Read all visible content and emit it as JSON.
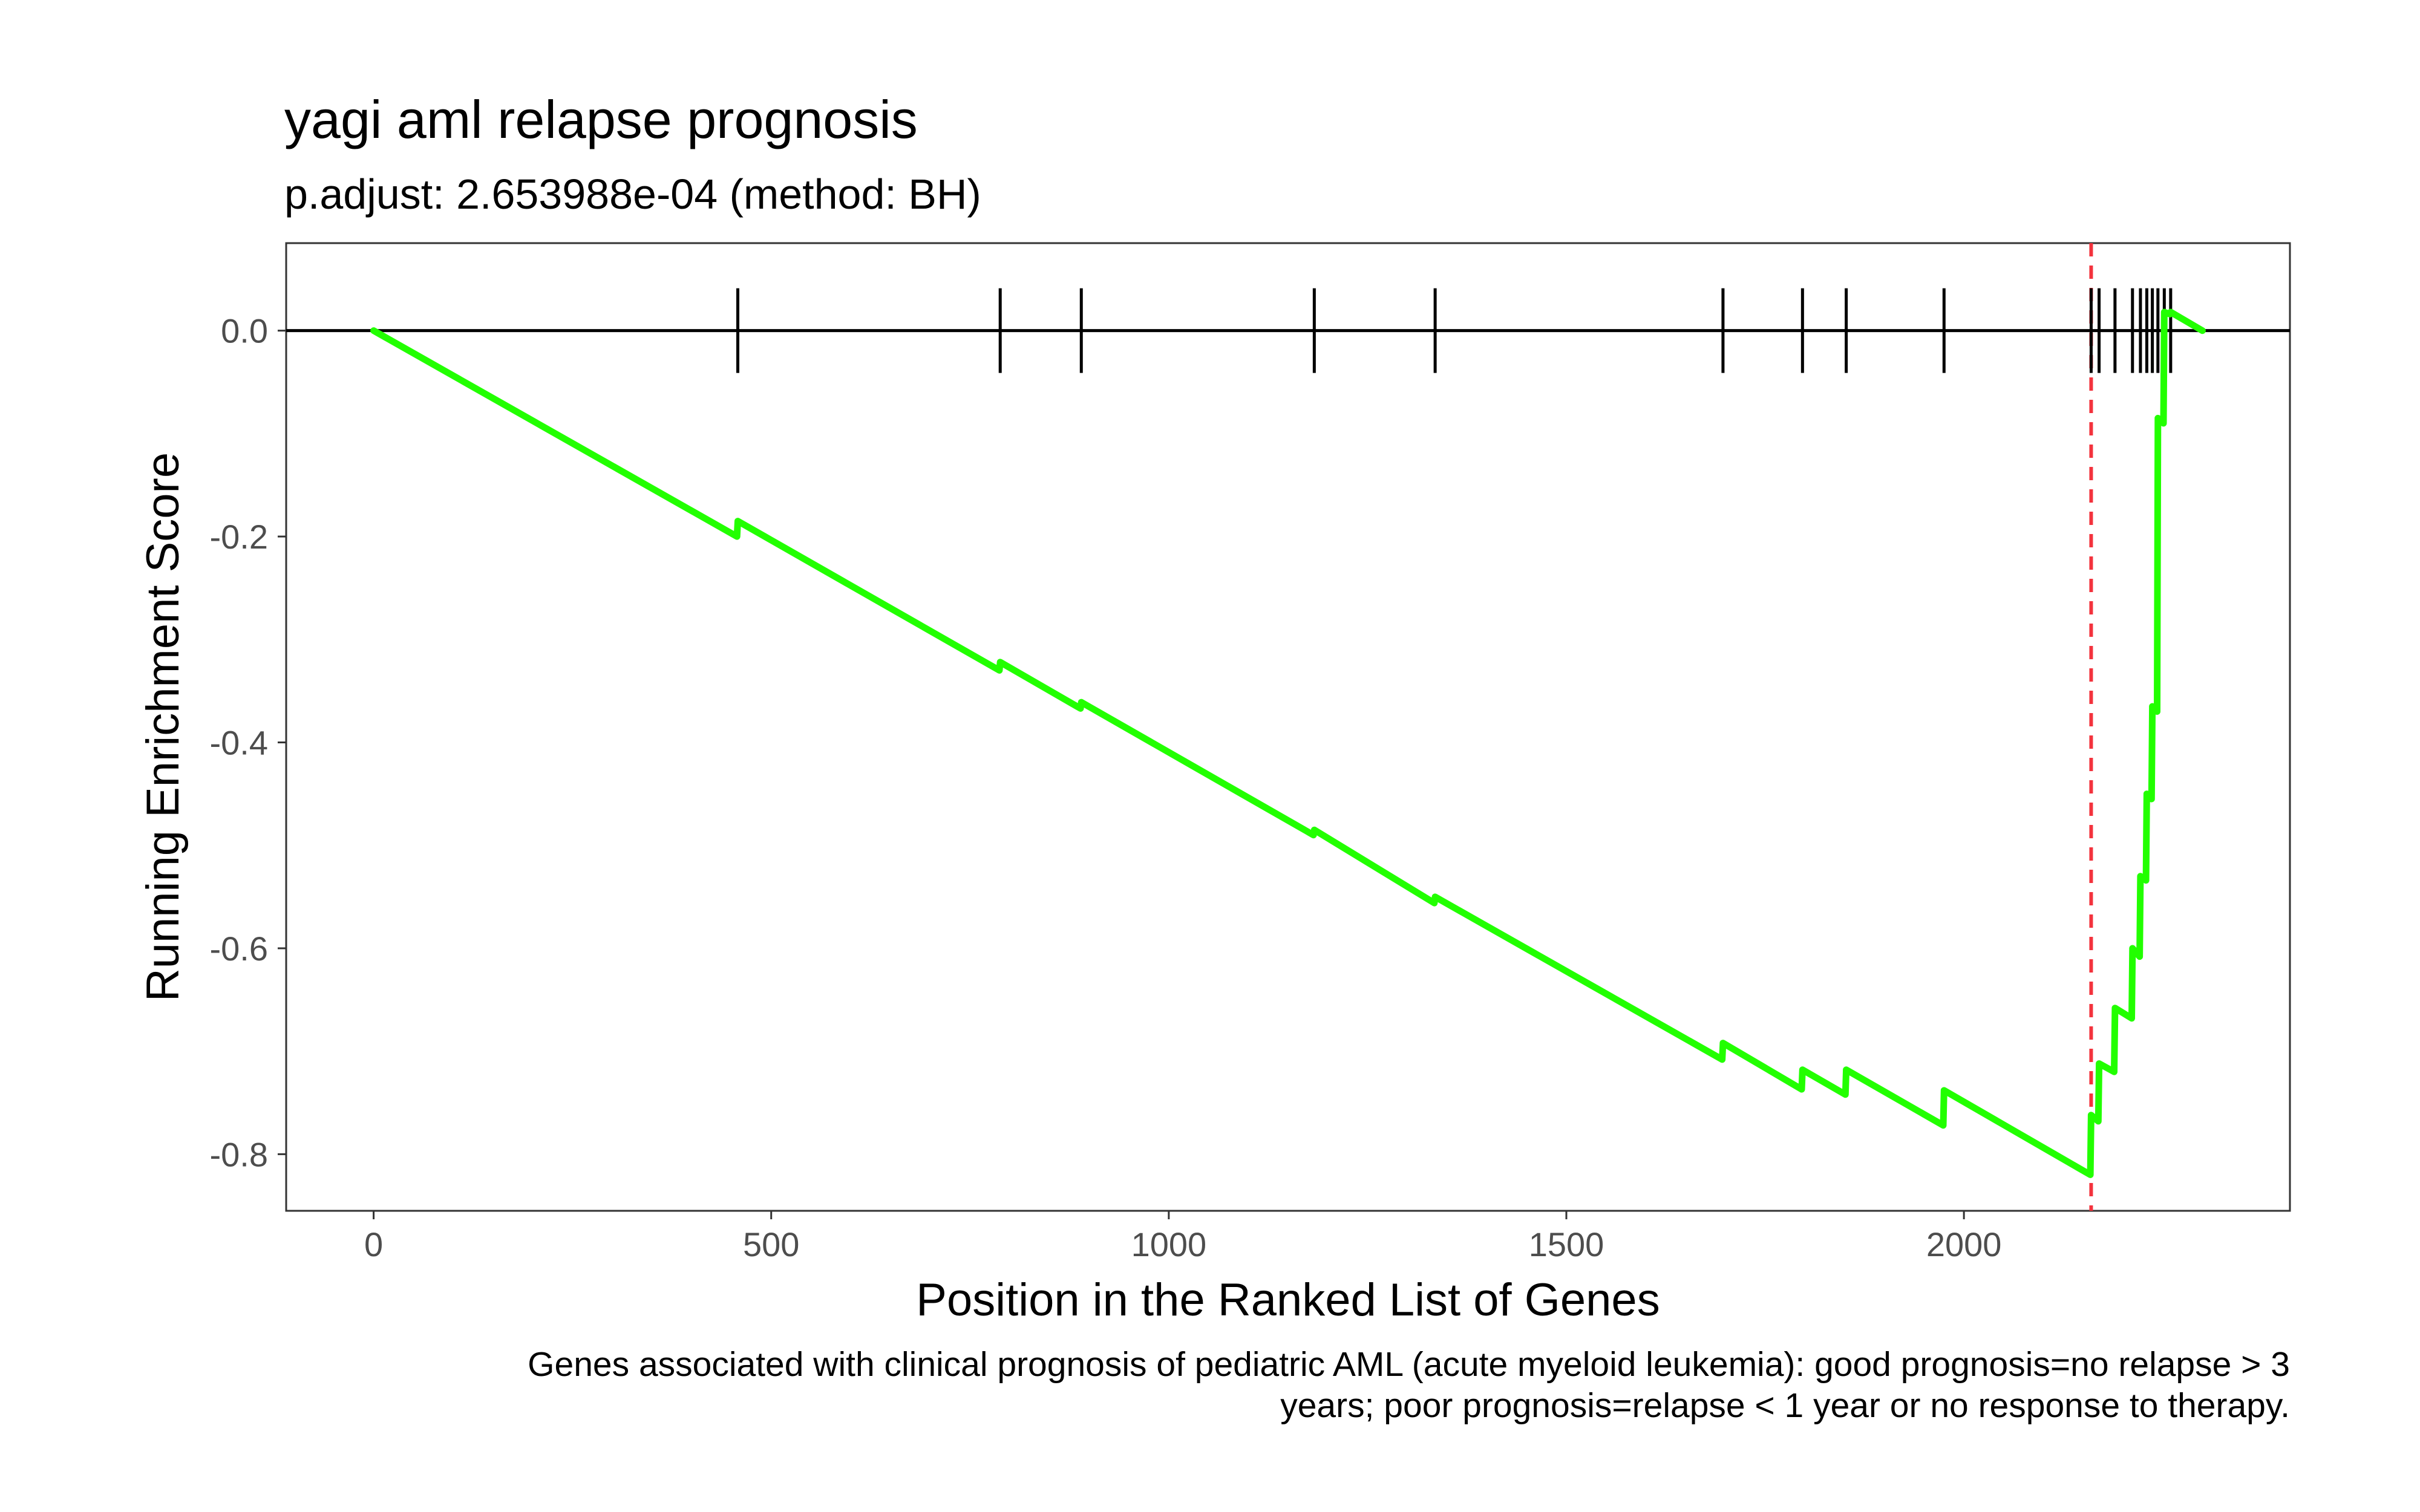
{
  "chart_data": {
    "type": "line",
    "title": "yagi aml relapse prognosis",
    "subtitle": "p.adjust: 2.653988e-04 (method: BH)",
    "xlabel": "Position in the Ranked List of Genes",
    "ylabel": "Running Enrichment Score",
    "caption_lines": [
      "Genes associated with clinical prognosis of pediatric AML (acute myeloid leukemia): good prognosis=no relapse > 3",
      "years; poor prognosis=relapse < 1 year or no response to therapy."
    ],
    "xlim": [
      -110,
      2410
    ],
    "ylim": [
      -0.855,
      0.085
    ],
    "x_ticks": [
      0,
      500,
      1000,
      1500,
      2000
    ],
    "x_tick_labels": [
      "0",
      "500",
      "1000",
      "1500",
      "2000"
    ],
    "y_ticks": [
      0.0,
      -0.2,
      -0.4,
      -0.6,
      -0.8
    ],
    "y_tick_labels": [
      "0.0",
      "-0.2",
      "-0.4",
      "-0.6",
      "-0.8"
    ],
    "grid": false,
    "series_color": "#22ff00",
    "hit_color": "#000000",
    "peak_line_color": "#f3333d",
    "peak_position": 2160,
    "hits": [
      458,
      788,
      890,
      1183,
      1335,
      1697,
      1797,
      1852,
      1975,
      2160,
      2170,
      2190,
      2212,
      2222,
      2230,
      2237,
      2244,
      2252,
      2260
    ],
    "series": [
      {
        "x": [
          0,
          457,
          458,
          787,
          788,
          889,
          890,
          1182,
          1183,
          1334,
          1335,
          1696,
          1697,
          1796,
          1797,
          1851,
          1852,
          1974,
          1975,
          2159,
          2160,
          2169,
          2170,
          2189,
          2190,
          2211,
          2212,
          2221,
          2222,
          2229,
          2230,
          2236,
          2237,
          2243,
          2244,
          2251,
          2252,
          2259,
          2260,
          2300
        ],
        "y": [
          0.0,
          -0.2,
          -0.185,
          -0.33,
          -0.322,
          -0.367,
          -0.361,
          -0.49,
          -0.485,
          -0.556,
          -0.55,
          -0.708,
          -0.692,
          -0.737,
          -0.718,
          -0.742,
          -0.718,
          -0.772,
          -0.738,
          -0.82,
          -0.762,
          -0.768,
          -0.712,
          -0.72,
          -0.658,
          -0.668,
          -0.6,
          -0.608,
          -0.53,
          -0.534,
          -0.45,
          -0.455,
          -0.365,
          -0.37,
          -0.085,
          -0.09,
          0.018,
          0.016,
          0.018,
          0.0
        ]
      }
    ]
  }
}
